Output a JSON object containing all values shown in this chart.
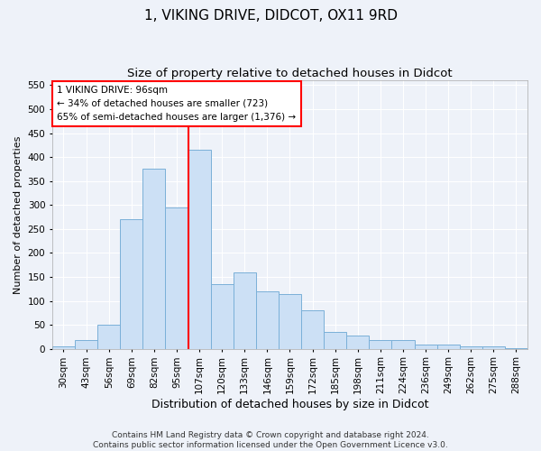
{
  "title": "1, VIKING DRIVE, DIDCOT, OX11 9RD",
  "subtitle": "Size of property relative to detached houses in Didcot",
  "xlabel": "Distribution of detached houses by size in Didcot",
  "ylabel": "Number of detached properties",
  "footer_line1": "Contains HM Land Registry data © Crown copyright and database right 2024.",
  "footer_line2": "Contains public sector information licensed under the Open Government Licence v3.0.",
  "annotation_line1": "1 VIKING DRIVE: 96sqm",
  "annotation_line2": "← 34% of detached houses are smaller (723)",
  "annotation_line3": "65% of semi-detached houses are larger (1,376) →",
  "bar_color": "#cce0f5",
  "bar_edge_color": "#7ab0d8",
  "vline_color": "red",
  "categories": [
    "30sqm",
    "43sqm",
    "56sqm",
    "69sqm",
    "82sqm",
    "95sqm",
    "107sqm",
    "120sqm",
    "133sqm",
    "146sqm",
    "159sqm",
    "172sqm",
    "185sqm",
    "198sqm",
    "211sqm",
    "224sqm",
    "236sqm",
    "249sqm",
    "262sqm",
    "275sqm",
    "288sqm"
  ],
  "values": [
    5,
    18,
    50,
    270,
    375,
    295,
    415,
    135,
    160,
    120,
    115,
    80,
    35,
    28,
    18,
    18,
    8,
    8,
    5,
    5,
    2
  ],
  "ylim": [
    0,
    560
  ],
  "yticks": [
    0,
    50,
    100,
    150,
    200,
    250,
    300,
    350,
    400,
    450,
    500,
    550
  ],
  "background_color": "#eef2f9",
  "plot_bg_color": "#eef2f9",
  "grid_color": "#ffffff",
  "title_fontsize": 11,
  "subtitle_fontsize": 9.5,
  "footer_fontsize": 6.5,
  "ylabel_fontsize": 8,
  "xlabel_fontsize": 9,
  "tick_fontsize": 7.5
}
